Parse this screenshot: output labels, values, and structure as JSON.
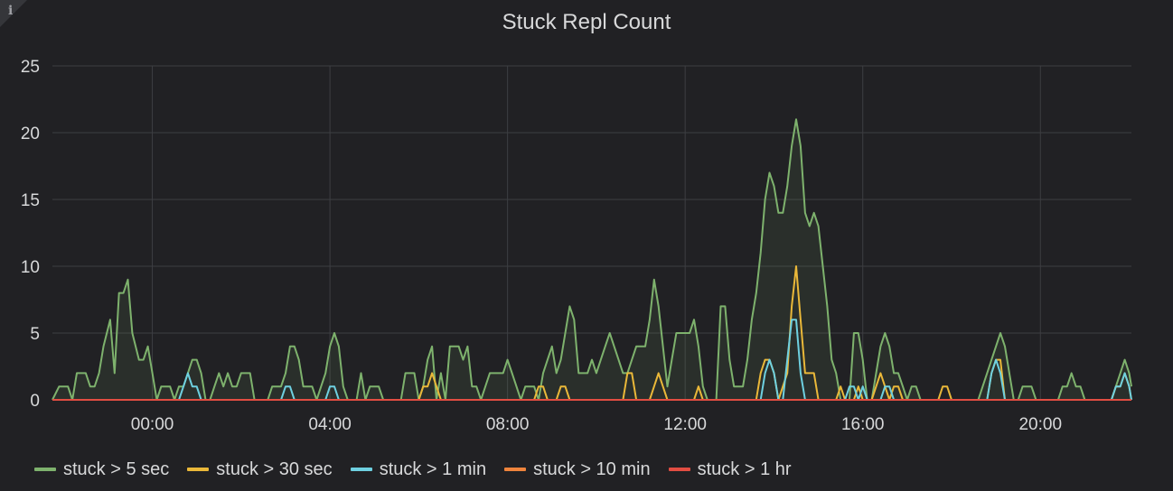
{
  "panel": {
    "title": "Stuck Repl Count",
    "info_icon": "i"
  },
  "chart_data": {
    "type": "line",
    "title": "Stuck Repl Count",
    "xlabel": "",
    "ylabel": "",
    "x_unit": "hours",
    "xlim": [
      -2.25,
      22.05
    ],
    "ylim": [
      0,
      25
    ],
    "yticks": [
      0,
      5,
      10,
      15,
      20,
      25
    ],
    "xticks": [
      0,
      4,
      8,
      12,
      16,
      20
    ],
    "xtick_labels": [
      "00:00",
      "04:00",
      "08:00",
      "12:00",
      "16:00",
      "20:00"
    ],
    "grid": true,
    "legend": "bottom",
    "series": [
      {
        "name": "stuck > 5 sec",
        "color": "#7eb26d",
        "fill": true,
        "points": [
          [
            -2.25,
            0
          ],
          [
            -2.1,
            1
          ],
          [
            -1.9,
            1
          ],
          [
            -1.8,
            0
          ],
          [
            -1.7,
            2
          ],
          [
            -1.5,
            2
          ],
          [
            -1.4,
            1
          ],
          [
            -1.3,
            1
          ],
          [
            -1.2,
            2
          ],
          [
            -1.1,
            4
          ],
          [
            -0.95,
            6
          ],
          [
            -0.85,
            2
          ],
          [
            -0.75,
            8
          ],
          [
            -0.65,
            8
          ],
          [
            -0.55,
            9
          ],
          [
            -0.45,
            5
          ],
          [
            -0.3,
            3
          ],
          [
            -0.2,
            3
          ],
          [
            -0.1,
            4
          ],
          [
            0.0,
            2
          ],
          [
            0.1,
            0
          ],
          [
            0.2,
            1
          ],
          [
            0.4,
            1
          ],
          [
            0.5,
            0
          ],
          [
            0.6,
            1
          ],
          [
            0.7,
            1
          ],
          [
            0.8,
            2
          ],
          [
            0.9,
            3
          ],
          [
            1.0,
            3
          ],
          [
            1.1,
            2
          ],
          [
            1.2,
            0
          ],
          [
            1.3,
            0
          ],
          [
            1.4,
            1
          ],
          [
            1.5,
            2
          ],
          [
            1.6,
            1
          ],
          [
            1.7,
            2
          ],
          [
            1.8,
            1
          ],
          [
            1.9,
            1
          ],
          [
            2.0,
            2
          ],
          [
            2.2,
            2
          ],
          [
            2.3,
            0
          ],
          [
            2.6,
            0
          ],
          [
            2.7,
            1
          ],
          [
            2.9,
            1
          ],
          [
            3.0,
            2
          ],
          [
            3.1,
            4
          ],
          [
            3.2,
            4
          ],
          [
            3.3,
            3
          ],
          [
            3.4,
            1
          ],
          [
            3.6,
            1
          ],
          [
            3.7,
            0
          ],
          [
            3.8,
            1
          ],
          [
            3.9,
            2
          ],
          [
            4.0,
            4
          ],
          [
            4.1,
            5
          ],
          [
            4.2,
            4
          ],
          [
            4.3,
            1
          ],
          [
            4.4,
            0
          ],
          [
            4.6,
            0
          ],
          [
            4.7,
            2
          ],
          [
            4.8,
            0
          ],
          [
            4.9,
            1
          ],
          [
            5.1,
            1
          ],
          [
            5.2,
            0
          ],
          [
            5.6,
            0
          ],
          [
            5.7,
            2
          ],
          [
            5.9,
            2
          ],
          [
            6.0,
            0
          ],
          [
            6.1,
            1
          ],
          [
            6.2,
            3
          ],
          [
            6.3,
            4
          ],
          [
            6.4,
            0
          ],
          [
            6.5,
            2
          ],
          [
            6.6,
            0
          ],
          [
            6.7,
            4
          ],
          [
            6.9,
            4
          ],
          [
            7.0,
            3
          ],
          [
            7.1,
            4
          ],
          [
            7.2,
            1
          ],
          [
            7.3,
            1
          ],
          [
            7.4,
            0
          ],
          [
            7.5,
            1
          ],
          [
            7.6,
            2
          ],
          [
            7.9,
            2
          ],
          [
            8.0,
            3
          ],
          [
            8.1,
            2
          ],
          [
            8.2,
            1
          ],
          [
            8.3,
            0
          ],
          [
            8.4,
            1
          ],
          [
            8.6,
            1
          ],
          [
            8.7,
            0
          ],
          [
            8.8,
            2
          ],
          [
            8.9,
            3
          ],
          [
            9.0,
            4
          ],
          [
            9.1,
            2
          ],
          [
            9.2,
            3
          ],
          [
            9.3,
            5
          ],
          [
            9.4,
            7
          ],
          [
            9.5,
            6
          ],
          [
            9.6,
            2
          ],
          [
            9.8,
            2
          ],
          [
            9.9,
            3
          ],
          [
            10.0,
            2
          ],
          [
            10.1,
            3
          ],
          [
            10.2,
            4
          ],
          [
            10.3,
            5
          ],
          [
            10.4,
            4
          ],
          [
            10.5,
            3
          ],
          [
            10.6,
            2
          ],
          [
            10.7,
            2
          ],
          [
            10.8,
            3
          ],
          [
            10.9,
            4
          ],
          [
            11.1,
            4
          ],
          [
            11.2,
            6
          ],
          [
            11.3,
            9
          ],
          [
            11.4,
            7
          ],
          [
            11.5,
            4
          ],
          [
            11.6,
            1
          ],
          [
            11.7,
            3
          ],
          [
            11.8,
            5
          ],
          [
            12.1,
            5
          ],
          [
            12.2,
            6
          ],
          [
            12.3,
            4
          ],
          [
            12.4,
            1
          ],
          [
            12.5,
            0
          ],
          [
            12.6,
            0
          ],
          [
            12.7,
            0
          ],
          [
            12.8,
            7
          ],
          [
            12.9,
            7
          ],
          [
            13.0,
            3
          ],
          [
            13.1,
            1
          ],
          [
            13.3,
            1
          ],
          [
            13.4,
            3
          ],
          [
            13.5,
            6
          ],
          [
            13.6,
            8
          ],
          [
            13.7,
            11
          ],
          [
            13.8,
            15
          ],
          [
            13.9,
            17
          ],
          [
            14.0,
            16
          ],
          [
            14.1,
            14
          ],
          [
            14.2,
            14
          ],
          [
            14.3,
            16
          ],
          [
            14.4,
            19
          ],
          [
            14.5,
            21
          ],
          [
            14.6,
            19
          ],
          [
            14.7,
            14
          ],
          [
            14.8,
            13
          ],
          [
            14.9,
            14
          ],
          [
            15.0,
            13
          ],
          [
            15.1,
            10
          ],
          [
            15.2,
            7
          ],
          [
            15.3,
            3
          ],
          [
            15.4,
            2
          ],
          [
            15.5,
            0
          ],
          [
            15.7,
            0
          ],
          [
            15.8,
            5
          ],
          [
            15.9,
            5
          ],
          [
            16.0,
            3
          ],
          [
            16.1,
            0
          ],
          [
            16.2,
            0
          ],
          [
            16.3,
            2
          ],
          [
            16.4,
            4
          ],
          [
            16.5,
            5
          ],
          [
            16.6,
            4
          ],
          [
            16.7,
            2
          ],
          [
            16.8,
            2
          ],
          [
            16.9,
            1
          ],
          [
            17.0,
            0
          ],
          [
            17.1,
            1
          ],
          [
            17.2,
            1
          ],
          [
            17.3,
            0
          ],
          [
            18.5,
            0
          ],
          [
            18.6,
            0
          ],
          [
            18.7,
            1
          ],
          [
            18.8,
            2
          ],
          [
            18.9,
            3
          ],
          [
            19.0,
            4
          ],
          [
            19.1,
            5
          ],
          [
            19.2,
            4
          ],
          [
            19.3,
            2
          ],
          [
            19.4,
            0
          ],
          [
            19.5,
            0
          ],
          [
            19.6,
            1
          ],
          [
            19.8,
            1
          ],
          [
            19.9,
            0
          ],
          [
            20.4,
            0
          ],
          [
            20.5,
            1
          ],
          [
            20.6,
            1
          ],
          [
            20.7,
            2
          ],
          [
            20.8,
            1
          ],
          [
            20.9,
            1
          ],
          [
            21.0,
            0
          ],
          [
            21.6,
            0
          ],
          [
            21.7,
            1
          ],
          [
            21.8,
            2
          ],
          [
            21.9,
            3
          ],
          [
            22.0,
            2
          ],
          [
            22.05,
            1
          ]
        ]
      },
      {
        "name": "stuck > 30 sec",
        "color": "#eab839",
        "fill": false,
        "points": [
          [
            -2.25,
            0
          ],
          [
            6.0,
            0
          ],
          [
            6.1,
            1
          ],
          [
            6.2,
            1
          ],
          [
            6.3,
            2
          ],
          [
            6.4,
            1
          ],
          [
            6.5,
            0
          ],
          [
            8.6,
            0
          ],
          [
            8.7,
            1
          ],
          [
            8.8,
            1
          ],
          [
            8.9,
            0
          ],
          [
            9.1,
            0
          ],
          [
            9.2,
            1
          ],
          [
            9.3,
            1
          ],
          [
            9.4,
            0
          ],
          [
            10.6,
            0
          ],
          [
            10.7,
            2
          ],
          [
            10.8,
            2
          ],
          [
            10.9,
            0
          ],
          [
            11.2,
            0
          ],
          [
            11.3,
            1
          ],
          [
            11.4,
            2
          ],
          [
            11.5,
            1
          ],
          [
            11.6,
            0
          ],
          [
            12.2,
            0
          ],
          [
            12.3,
            1
          ],
          [
            12.4,
            0
          ],
          [
            13.6,
            0
          ],
          [
            13.7,
            2
          ],
          [
            13.8,
            3
          ],
          [
            13.9,
            3
          ],
          [
            14.0,
            2
          ],
          [
            14.1,
            0
          ],
          [
            14.3,
            2
          ],
          [
            14.4,
            7
          ],
          [
            14.5,
            10
          ],
          [
            14.6,
            6
          ],
          [
            14.7,
            2
          ],
          [
            14.8,
            2
          ],
          [
            14.9,
            2
          ],
          [
            15.0,
            0
          ],
          [
            15.4,
            0
          ],
          [
            15.5,
            1
          ],
          [
            15.6,
            0
          ],
          [
            15.8,
            0
          ],
          [
            15.9,
            1
          ],
          [
            16.0,
            0
          ],
          [
            16.2,
            0
          ],
          [
            16.3,
            1
          ],
          [
            16.4,
            2
          ],
          [
            16.5,
            1
          ],
          [
            16.6,
            0
          ],
          [
            16.7,
            1
          ],
          [
            16.8,
            1
          ],
          [
            16.9,
            0
          ],
          [
            17.7,
            0
          ],
          [
            17.8,
            1
          ],
          [
            17.9,
            1
          ],
          [
            18.0,
            0
          ],
          [
            18.8,
            0
          ],
          [
            18.9,
            2
          ],
          [
            19.0,
            3
          ],
          [
            19.1,
            3
          ],
          [
            19.2,
            0
          ],
          [
            20.0,
            0
          ],
          [
            21.6,
            0
          ],
          [
            21.7,
            1
          ],
          [
            21.8,
            1
          ],
          [
            21.9,
            2
          ],
          [
            22.0,
            1
          ],
          [
            22.05,
            0
          ]
        ]
      },
      {
        "name": "stuck > 1 min",
        "color": "#6ed0e0",
        "fill": false,
        "points": [
          [
            -2.25,
            0
          ],
          [
            0.6,
            0
          ],
          [
            0.7,
            1
          ],
          [
            0.8,
            2
          ],
          [
            0.9,
            1
          ],
          [
            1.0,
            1
          ],
          [
            1.1,
            0
          ],
          [
            2.9,
            0
          ],
          [
            3.0,
            1
          ],
          [
            3.1,
            1
          ],
          [
            3.2,
            0
          ],
          [
            3.9,
            0
          ],
          [
            4.0,
            1
          ],
          [
            4.1,
            1
          ],
          [
            4.2,
            0
          ],
          [
            13.7,
            0
          ],
          [
            13.8,
            2
          ],
          [
            13.9,
            3
          ],
          [
            14.0,
            2
          ],
          [
            14.1,
            0
          ],
          [
            14.2,
            0
          ],
          [
            14.3,
            3
          ],
          [
            14.4,
            6
          ],
          [
            14.5,
            6
          ],
          [
            14.6,
            2
          ],
          [
            14.7,
            0
          ],
          [
            15.6,
            0
          ],
          [
            15.7,
            1
          ],
          [
            15.8,
            1
          ],
          [
            15.9,
            0
          ],
          [
            16.0,
            1
          ],
          [
            16.1,
            0
          ],
          [
            16.4,
            0
          ],
          [
            16.5,
            1
          ],
          [
            16.6,
            1
          ],
          [
            16.7,
            0
          ],
          [
            18.8,
            0
          ],
          [
            18.9,
            2
          ],
          [
            19.0,
            3
          ],
          [
            19.1,
            2
          ],
          [
            19.2,
            0
          ],
          [
            21.6,
            0
          ],
          [
            21.7,
            1
          ],
          [
            21.8,
            1
          ],
          [
            21.9,
            2
          ],
          [
            22.0,
            1
          ],
          [
            22.05,
            0
          ]
        ]
      },
      {
        "name": "stuck > 10 min",
        "color": "#ef843c",
        "fill": false,
        "points": [
          [
            -2.25,
            0
          ],
          [
            22.05,
            0
          ]
        ]
      },
      {
        "name": "stuck > 1 hr",
        "color": "#e24d42",
        "fill": false,
        "points": [
          [
            -2.25,
            0
          ],
          [
            22.05,
            0
          ]
        ]
      }
    ]
  }
}
